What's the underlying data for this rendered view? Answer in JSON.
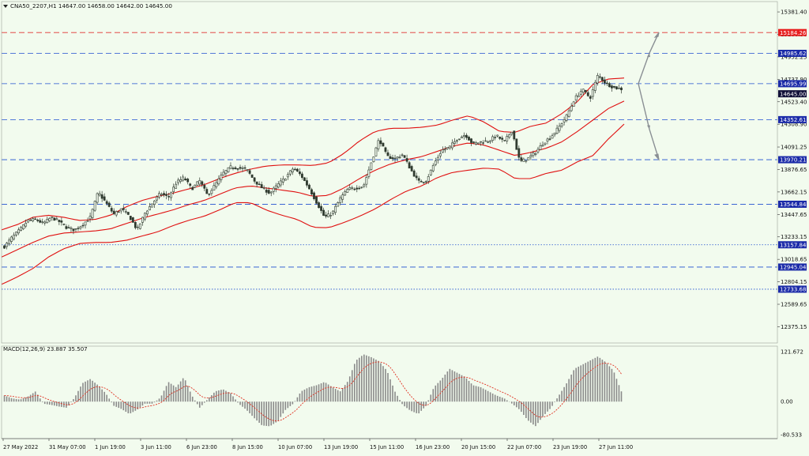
{
  "window": {
    "symbol_line": "CNA50_2207,H1  14647.00 14658.00 14642.00 14645.00",
    "dropdown_icon": "triangle-down-icon",
    "background": "#f2fbee"
  },
  "colors": {
    "candle": "#2f3a2f",
    "bands": "#e01010",
    "level_blue": "#1f4fd0",
    "level_red": "#e03030",
    "label_blue_bg": "#1a2aa8",
    "label_red_bg": "#e82020",
    "macd_hist": "#8a8a8a",
    "macd_signal": "#e03020",
    "arrow": "#8a8f94"
  },
  "chart_data": [
    {
      "type": "candlestick",
      "title": "CNA50_2207,H1",
      "ohlc_last": {
        "open": 14647.0,
        "high": 14658.0,
        "low": 14642.0,
        "close": 14645.0
      },
      "ylim": [
        12220,
        15480
      ],
      "y_ticks": [
        "15381.40",
        "15166.90",
        "14952.25",
        "14737.90",
        "14523.40",
        "14308.90",
        "14091.25",
        "13876.65",
        "13662.15",
        "13447.65",
        "13233.15",
        "13018.65",
        "12804.15",
        "12589.65",
        "12375.15"
      ],
      "x_ticks": [
        "27 May 2022",
        "31 May 07:00",
        "1 Jun 19:00",
        "3 Jun 11:00",
        "6 Jun 23:00",
        "8 Jun 15:00",
        "10 Jun 07:00",
        "13 Jun 19:00",
        "15 Jun 11:00",
        "16 Jun 23:00",
        "20 Jun 15:00",
        "22 Jun 07:00",
        "23 Jun 19:00",
        "27 Jun 11:00"
      ],
      "levels": [
        {
          "value": 15184.26,
          "label": "15184.26",
          "color": "red",
          "style": "dashed"
        },
        {
          "value": 14985.62,
          "label": "14985.62",
          "color": "blue",
          "style": "dashed"
        },
        {
          "value": 14695.99,
          "label": "14695.99",
          "color": "blue",
          "style": "dashed"
        },
        {
          "value": 14352.61,
          "label": "14352.61",
          "color": "blue",
          "style": "dashed"
        },
        {
          "value": 13970.21,
          "label": "13970.21",
          "color": "blue",
          "style": "dashed"
        },
        {
          "value": 13544.84,
          "label": "13544.84",
          "color": "blue",
          "style": "dashed"
        },
        {
          "value": 13157.84,
          "label": "13157.84",
          "color": "blue",
          "style": "dotted"
        },
        {
          "value": 12945.04,
          "label": "12945.04",
          "color": "blue",
          "style": "dashed"
        },
        {
          "value": 12733.68,
          "label": "12733.68",
          "color": "blue",
          "style": "dotted"
        }
      ],
      "current_price": {
        "value": 14645.0,
        "label": "14645.00"
      },
      "price_path": [
        13140,
        13230,
        13300,
        13390,
        13400,
        13360,
        13420,
        13380,
        13320,
        13300,
        13350,
        13420,
        13660,
        13560,
        13450,
        13500,
        13430,
        13300,
        13460,
        13560,
        13650,
        13610,
        13750,
        13800,
        13690,
        13770,
        13630,
        13730,
        13840,
        13900,
        13890,
        13880,
        13770,
        13700,
        13650,
        13730,
        13800,
        13890,
        13820,
        13700,
        13560,
        13420,
        13460,
        13600,
        13690,
        13700,
        13720,
        13950,
        14170,
        14000,
        13980,
        14020,
        13880,
        13760,
        13770,
        13930,
        14060,
        14090,
        14170,
        14210,
        14120,
        14140,
        14150,
        14200,
        14140,
        14250,
        13950,
        13980,
        14040,
        14130,
        14190,
        14280,
        14390,
        14550,
        14640,
        14560,
        14780,
        14700,
        14660,
        14645
      ],
      "bollinger": {
        "period": 20,
        "upper": [
          13300,
          13350,
          13420,
          13440,
          13420,
          13390,
          13400,
          13440,
          13520,
          13580,
          13620,
          13650,
          13690,
          13730,
          13790,
          13840,
          13880,
          13910,
          13920,
          13920,
          13915,
          13940,
          14030,
          14150,
          14240,
          14270,
          14270,
          14280,
          14300,
          14350,
          14390,
          14330,
          14240,
          14230,
          14290,
          14320,
          14410,
          14525,
          14690,
          14740,
          14750
        ],
        "middle": [
          13040,
          13110,
          13180,
          13240,
          13270,
          13280,
          13290,
          13310,
          13360,
          13410,
          13450,
          13490,
          13540,
          13580,
          13640,
          13700,
          13720,
          13700,
          13680,
          13660,
          13620,
          13630,
          13700,
          13790,
          13870,
          13930,
          13970,
          14000,
          14050,
          14100,
          14130,
          14110,
          14060,
          14010,
          14040,
          14080,
          14140,
          14240,
          14350,
          14460,
          14530
        ],
        "lower": [
          12780,
          12850,
          12930,
          13040,
          13120,
          13170,
          13180,
          13180,
          13200,
          13240,
          13280,
          13340,
          13390,
          13430,
          13490,
          13560,
          13560,
          13490,
          13440,
          13400,
          13325,
          13320,
          13370,
          13430,
          13500,
          13590,
          13670,
          13720,
          13800,
          13850,
          13870,
          13890,
          13880,
          13790,
          13790,
          13840,
          13870,
          13950,
          14010,
          14170,
          14310
        ]
      },
      "arrows": [
        {
          "from": 14695.99,
          "to": 15184.26,
          "direction": "up"
        },
        {
          "from": 14695.99,
          "to": 13970.21,
          "direction": "down"
        }
      ]
    },
    {
      "type": "bar",
      "title": "MACD(12,26,9) 23.887 35.507",
      "indicator": "MACD(12,26,9)",
      "macd_value": 23.887,
      "signal_value": 35.507,
      "ylim": [
        -90,
        135
      ],
      "y_ticks": [
        "121.672",
        "0.00",
        "-80.533"
      ],
      "hist_path": [
        15,
        8,
        5,
        12,
        25,
        -5,
        -8,
        -12,
        -15,
        10,
        45,
        55,
        40,
        20,
        -10,
        -18,
        -30,
        -20,
        -5,
        -5,
        10,
        48,
        35,
        60,
        15,
        -15,
        5,
        25,
        30,
        20,
        -5,
        -20,
        -40,
        -58,
        -60,
        -48,
        -20,
        -5,
        25,
        35,
        40,
        48,
        35,
        25,
        50,
        100,
        115,
        108,
        98,
        75,
        25,
        -8,
        -22,
        -30,
        -10,
        35,
        55,
        80,
        70,
        60,
        40,
        35,
        25,
        15,
        8,
        -5,
        -20,
        -45,
        -60,
        -35,
        -15,
        15,
        45,
        80,
        90,
        100,
        110,
        96,
        75,
        25
      ]
    }
  ]
}
